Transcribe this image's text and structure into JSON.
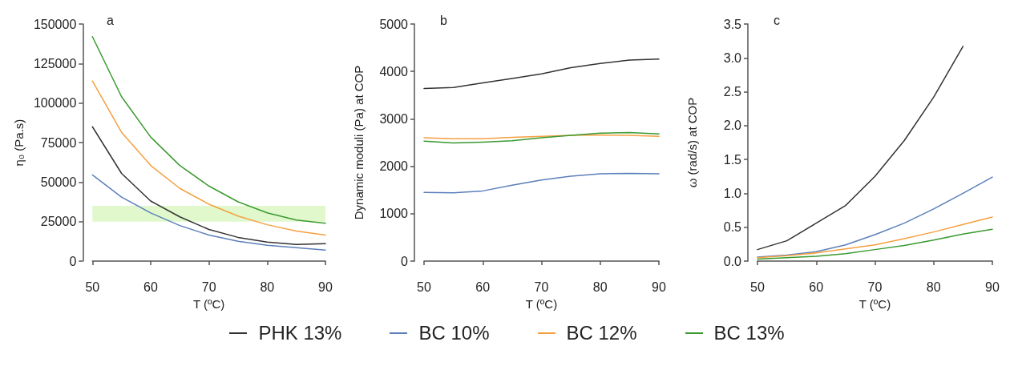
{
  "chart_data": [
    {
      "type": "line",
      "title": "a",
      "xlabel": "T (ºC)",
      "ylabel": "η₀ (Pa.s)",
      "x": [
        50,
        55,
        60,
        65,
        70,
        75,
        80,
        85,
        90
      ],
      "xlim": [
        50,
        90
      ],
      "xticks": [
        50,
        60,
        70,
        80,
        90
      ],
      "ylim": [
        0,
        150000
      ],
      "yticks": [
        0,
        25000,
        50000,
        75000,
        100000,
        125000,
        150000
      ],
      "grid": false,
      "legend": "bottom",
      "marker": "none",
      "line_style": "solid",
      "bands": [
        {
          "axis": "y",
          "from": 25000,
          "to": 35000,
          "color": "#e0f8cc"
        }
      ],
      "series": [
        {
          "name": "PHK 13%",
          "color": "#333333",
          "values": [
            85000,
            55500,
            38000,
            28000,
            20000,
            15000,
            12000,
            10500,
            11000
          ]
        },
        {
          "name": "BC 10%",
          "color": "#5b7fba",
          "values": [
            54500,
            40500,
            30500,
            22500,
            16500,
            12500,
            10000,
            8500,
            7000
          ]
        },
        {
          "name": "BC 12%",
          "color": "#f5a040",
          "values": [
            114000,
            81500,
            60500,
            46000,
            36000,
            28500,
            23000,
            19000,
            16500
          ]
        },
        {
          "name": "BC 13%",
          "color": "#3a9a2f",
          "values": [
            142000,
            104000,
            78500,
            60500,
            47500,
            37500,
            30500,
            26000,
            24000
          ]
        }
      ]
    },
    {
      "type": "line",
      "title": "b",
      "xlabel": "T (ºC)",
      "ylabel": "Dynamic moduli (Pa) at COP",
      "x": [
        50,
        55,
        60,
        65,
        70,
        75,
        80,
        85,
        90
      ],
      "xlim": [
        50,
        90
      ],
      "xticks": [
        50,
        60,
        70,
        80,
        90
      ],
      "ylim": [
        0,
        5000
      ],
      "yticks": [
        0,
        1000,
        2000,
        3000,
        4000,
        5000
      ],
      "grid": false,
      "marker": "none",
      "line_style": "solid",
      "series": [
        {
          "color": "#333333",
          "values": [
            3640,
            3660,
            3760,
            3850,
            3950,
            4080,
            4170,
            4240,
            4260
          ]
        },
        {
          "color": "#5b7fba",
          "values": [
            1450,
            1440,
            1480,
            1600,
            1710,
            1790,
            1840,
            1850,
            1840
          ]
        },
        {
          "color": "#f5a040",
          "values": [
            2600,
            2580,
            2580,
            2610,
            2630,
            2650,
            2660,
            2650,
            2630
          ]
        },
        {
          "color": "#3a9a2f",
          "values": [
            2530,
            2490,
            2510,
            2540,
            2600,
            2650,
            2700,
            2710,
            2680
          ]
        }
      ]
    },
    {
      "type": "line",
      "title": "c",
      "xlabel": "T (ºC)",
      "ylabel": "ω (rad/s) at COP",
      "x": [
        50,
        55,
        60,
        65,
        70,
        75,
        80,
        85,
        90
      ],
      "xlim": [
        50,
        90
      ],
      "xticks": [
        50,
        60,
        70,
        80,
        90
      ],
      "ylim": [
        0,
        3.5
      ],
      "yticks": [
        {
          "value": 0,
          "label": "0.0"
        },
        {
          "value": 0.5,
          "label": "0.5"
        },
        {
          "value": 1,
          "label": "1.0"
        },
        {
          "value": 1.5,
          "label": "1.5"
        },
        {
          "value": 2,
          "label": "2.0"
        },
        {
          "value": 2.5,
          "label": "2.5"
        },
        {
          "value": 3,
          "label": "3.0"
        },
        {
          "value": 3.5,
          "label": "3.5"
        }
      ],
      "grid": false,
      "marker": "none",
      "line_style": "solid",
      "series": [
        {
          "color": "#333333",
          "values": [
            0.17,
            0.3,
            0.56,
            0.82,
            1.25,
            1.78,
            2.42,
            3.17,
            null
          ]
        },
        {
          "color": "#5b7fba",
          "values": [
            0.06,
            0.09,
            0.14,
            0.24,
            0.39,
            0.56,
            0.77,
            1.0,
            1.24
          ]
        },
        {
          "color": "#f5a040",
          "values": [
            0.05,
            0.08,
            0.12,
            0.18,
            0.24,
            0.33,
            0.43,
            0.54,
            0.65
          ]
        },
        {
          "color": "#3a9a2f",
          "values": [
            0.03,
            0.05,
            0.07,
            0.11,
            0.17,
            0.23,
            0.31,
            0.4,
            0.47
          ]
        }
      ]
    }
  ]
}
